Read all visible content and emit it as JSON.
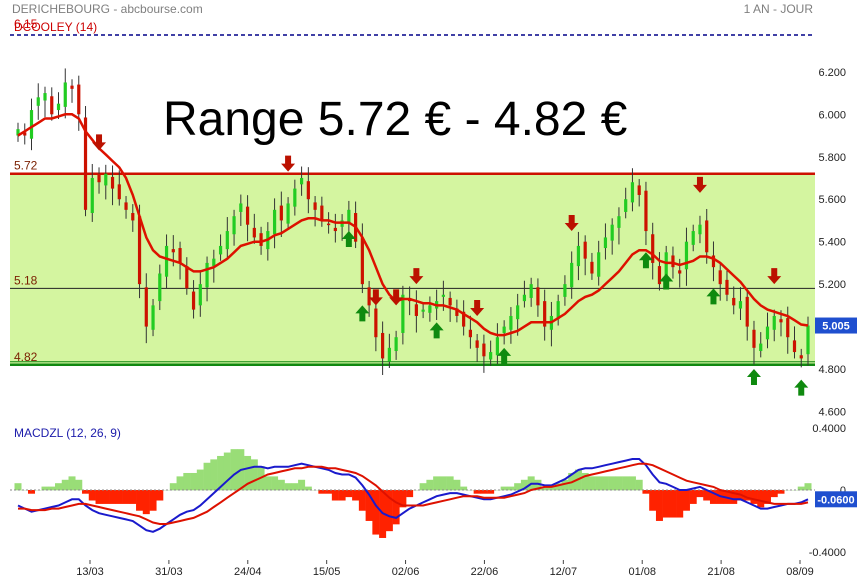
{
  "header": {
    "title": "DERICHEBOURG - abcbourse.com",
    "period": "1 AN - JOUR",
    "ticker_label": "6.15",
    "overlay_label": "DCOOLEY (14)"
  },
  "annotation": "Range 5.72 € - 4.82 €",
  "levels": [
    {
      "value": 5.72,
      "label": "5.72",
      "color": "#cc1100"
    },
    {
      "value": 5.18,
      "label": "5.18",
      "color": "#222222"
    },
    {
      "value": 4.82,
      "label": "4.82",
      "color": "#118811"
    }
  ],
  "colors": {
    "range_fill": "#d4f5a0",
    "bull": "#22cc22",
    "bear": "#cc1100",
    "ma": "#dd1100",
    "arrow_down": "#bb1100",
    "arrow_up": "#0f8a0f",
    "macd_line": "#1a1acc",
    "macd_signal": "#dd1100",
    "hist_pos": "#99dd77",
    "hist_neg": "#ff2200"
  },
  "chart_data": [
    {
      "type": "candlestick",
      "yticks": [
        4.6,
        4.8,
        5.0,
        5.2,
        5.4,
        5.6,
        5.8,
        6.0,
        6.2
      ],
      "ylim": [
        4.56,
        6.35
      ],
      "xlabels": [
        "13/03",
        "31/03",
        "24/04",
        "15/05",
        "02/06",
        "22/06",
        "12/07",
        "01/08",
        "21/08",
        "08/09"
      ],
      "last_price": "5.005",
      "close": [
        5.93,
        5.9,
        6.02,
        6.08,
        6.1,
        6.0,
        6.05,
        6.15,
        6.12,
        6.0,
        5.55,
        5.7,
        5.68,
        5.72,
        5.65,
        5.6,
        5.55,
        5.5,
        5.2,
        5.0,
        5.1,
        5.25,
        5.38,
        5.35,
        5.3,
        5.18,
        5.08,
        5.2,
        5.3,
        5.32,
        5.38,
        5.45,
        5.52,
        5.58,
        5.48,
        5.42,
        5.38,
        5.45,
        5.55,
        5.5,
        5.58,
        5.65,
        5.7,
        5.6,
        5.55,
        5.5,
        5.48,
        5.45,
        5.5,
        5.55,
        5.4,
        5.2,
        5.1,
        4.95,
        4.85,
        4.9,
        4.95,
        5.15,
        5.12,
        5.05,
        5.08,
        5.1,
        5.12,
        5.15,
        5.1,
        5.05,
        5.0,
        4.95,
        4.9,
        4.86,
        4.88,
        4.95,
        5.0,
        5.05,
        5.1,
        5.15,
        5.2,
        5.1,
        5.0,
        5.05,
        5.12,
        5.2,
        5.3,
        5.38,
        5.32,
        5.25,
        5.35,
        5.42,
        5.48,
        5.52,
        5.6,
        5.68,
        5.62,
        5.45,
        5.3,
        5.2,
        5.35,
        5.28,
        5.25,
        5.4,
        5.45,
        5.48,
        5.35,
        5.28,
        5.2,
        5.15,
        5.1,
        5.12,
        5.0,
        4.9,
        4.92,
        5.0,
        5.05,
        5.02,
        4.95,
        4.88,
        4.85,
        5.005
      ],
      "ma": [
        5.9,
        5.92,
        5.94,
        5.96,
        5.98,
        5.98,
        5.99,
        6.0,
        6.0,
        5.98,
        5.92,
        5.88,
        5.84,
        5.81,
        5.78,
        5.75,
        5.7,
        5.62,
        5.52,
        5.42,
        5.36,
        5.33,
        5.32,
        5.31,
        5.3,
        5.28,
        5.26,
        5.26,
        5.27,
        5.28,
        5.3,
        5.32,
        5.35,
        5.38,
        5.39,
        5.4,
        5.4,
        5.41,
        5.43,
        5.44,
        5.46,
        5.48,
        5.5,
        5.51,
        5.51,
        5.5,
        5.5,
        5.49,
        5.49,
        5.49,
        5.47,
        5.42,
        5.36,
        5.28,
        5.2,
        5.15,
        5.12,
        5.13,
        5.13,
        5.12,
        5.11,
        5.11,
        5.1,
        5.1,
        5.09,
        5.08,
        5.06,
        5.04,
        5.02,
        4.99,
        4.97,
        4.96,
        4.96,
        4.97,
        4.98,
        5.0,
        5.02,
        5.02,
        5.02,
        5.02,
        5.04,
        5.06,
        5.09,
        5.12,
        5.14,
        5.15,
        5.17,
        5.2,
        5.23,
        5.26,
        5.3,
        5.34,
        5.36,
        5.36,
        5.34,
        5.31,
        5.3,
        5.3,
        5.29,
        5.3,
        5.31,
        5.33,
        5.33,
        5.32,
        5.3,
        5.27,
        5.24,
        5.21,
        5.17,
        5.13,
        5.1,
        5.08,
        5.07,
        5.06,
        5.05,
        5.03,
        5.01,
        5.005
      ],
      "down_arrows": [
        12,
        40,
        53,
        56,
        59,
        68,
        82,
        101,
        112
      ],
      "up_arrows": [
        49,
        51,
        62,
        72,
        93,
        96,
        103,
        109,
        116
      ]
    },
    {
      "type": "line",
      "label": "MACDZL (12, 26, 9)",
      "yticks": [
        -0.4,
        0.0,
        0.4
      ],
      "ytick_labels": [
        "-0.4000",
        "0",
        "0.4000"
      ],
      "ylim": [
        -0.42,
        0.42
      ],
      "last_value": "-0.0600",
      "macd": [
        -0.1,
        -0.12,
        -0.14,
        -0.13,
        -0.12,
        -0.11,
        -0.1,
        -0.08,
        -0.06,
        -0.06,
        -0.1,
        -0.13,
        -0.15,
        -0.16,
        -0.17,
        -0.18,
        -0.19,
        -0.2,
        -0.23,
        -0.26,
        -0.27,
        -0.25,
        -0.22,
        -0.19,
        -0.16,
        -0.14,
        -0.13,
        -0.1,
        -0.06,
        -0.02,
        0.02,
        0.06,
        0.1,
        0.13,
        0.14,
        0.15,
        0.15,
        0.14,
        0.15,
        0.15,
        0.15,
        0.16,
        0.17,
        0.16,
        0.15,
        0.14,
        0.13,
        0.11,
        0.1,
        0.1,
        0.08,
        0.03,
        -0.03,
        -0.1,
        -0.15,
        -0.17,
        -0.18,
        -0.15,
        -0.12,
        -0.1,
        -0.08,
        -0.06,
        -0.04,
        -0.03,
        -0.02,
        -0.02,
        -0.03,
        -0.04,
        -0.05,
        -0.06,
        -0.06,
        -0.05,
        -0.04,
        -0.03,
        -0.01,
        0.01,
        0.04,
        0.04,
        0.03,
        0.03,
        0.05,
        0.07,
        0.1,
        0.13,
        0.14,
        0.14,
        0.15,
        0.16,
        0.17,
        0.18,
        0.19,
        0.2,
        0.2,
        0.16,
        0.1,
        0.05,
        0.04,
        0.02,
        0.0,
        0.0,
        0.01,
        0.02,
        0.0,
        -0.02,
        -0.04,
        -0.05,
        -0.06,
        -0.06,
        -0.08,
        -0.1,
        -0.12,
        -0.12,
        -0.11,
        -0.1,
        -0.09,
        -0.09,
        -0.08,
        -0.06
      ],
      "signal": [
        -0.12,
        -0.12,
        -0.13,
        -0.13,
        -0.13,
        -0.12,
        -0.12,
        -0.11,
        -0.1,
        -0.09,
        -0.09,
        -0.1,
        -0.11,
        -0.12,
        -0.13,
        -0.14,
        -0.15,
        -0.16,
        -0.17,
        -0.19,
        -0.21,
        -0.22,
        -0.22,
        -0.21,
        -0.2,
        -0.19,
        -0.18,
        -0.16,
        -0.14,
        -0.11,
        -0.08,
        -0.05,
        -0.02,
        0.01,
        0.04,
        0.06,
        0.08,
        0.1,
        0.11,
        0.12,
        0.13,
        0.14,
        0.14,
        0.15,
        0.15,
        0.15,
        0.14,
        0.14,
        0.13,
        0.12,
        0.11,
        0.09,
        0.06,
        0.03,
        -0.01,
        -0.05,
        -0.08,
        -0.1,
        -0.1,
        -0.1,
        -0.1,
        -0.09,
        -0.08,
        -0.07,
        -0.06,
        -0.05,
        -0.04,
        -0.04,
        -0.04,
        -0.05,
        -0.05,
        -0.05,
        -0.05,
        -0.04,
        -0.03,
        -0.02,
        0.0,
        0.01,
        0.02,
        0.02,
        0.03,
        0.04,
        0.05,
        0.07,
        0.09,
        0.1,
        0.11,
        0.12,
        0.13,
        0.14,
        0.15,
        0.16,
        0.17,
        0.17,
        0.16,
        0.14,
        0.12,
        0.1,
        0.08,
        0.06,
        0.05,
        0.04,
        0.03,
        0.02,
        0.0,
        -0.01,
        -0.02,
        -0.03,
        -0.05,
        -0.06,
        -0.07,
        -0.08,
        -0.09,
        -0.09,
        -0.09,
        -0.09,
        -0.09,
        -0.08
      ]
    }
  ]
}
